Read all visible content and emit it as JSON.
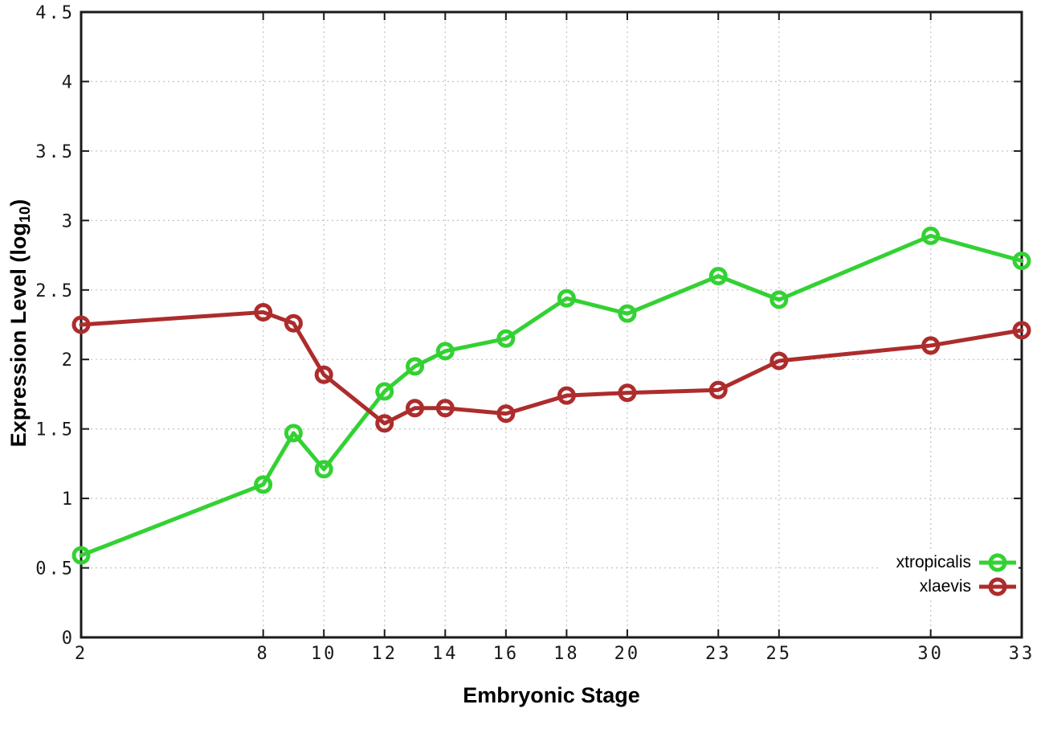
{
  "chart_data": {
    "type": "line",
    "title": "",
    "xlabel": "Embryonic Stage",
    "ylabel": "Expression Level (log10)",
    "ylabel_parts": {
      "main": "Expression Level (log",
      "sub": "10",
      "end": ")"
    },
    "x": [
      2,
      8,
      9,
      10,
      12,
      13,
      14,
      16,
      18,
      20,
      23,
      25,
      30,
      33
    ],
    "series": [
      {
        "name": "xtropicalis",
        "color": "#33d133",
        "values": [
          0.59,
          1.1,
          1.47,
          1.21,
          1.77,
          1.95,
          2.06,
          2.15,
          2.44,
          2.33,
          2.6,
          2.43,
          2.89,
          2.71
        ]
      },
      {
        "name": "xlaevis",
        "color": "#ad2c2c",
        "values": [
          2.25,
          2.34,
          2.26,
          1.89,
          1.54,
          1.65,
          1.65,
          1.61,
          1.74,
          1.76,
          1.78,
          1.99,
          2.1,
          2.21
        ]
      }
    ],
    "x_ticks": [
      2,
      8,
      10,
      12,
      14,
      16,
      18,
      20,
      23,
      25,
      30,
      33
    ],
    "y_ticks": [
      0,
      0.5,
      1,
      1.5,
      2,
      2.5,
      3,
      3.5,
      4,
      4.5
    ],
    "xlim": [
      2,
      33
    ],
    "ylim": [
      0,
      4.5
    ],
    "grid": true,
    "legend_position": "right-lower-inside",
    "marker": "open-circle"
  },
  "styles": {
    "background": "#ffffff",
    "axis_color": "#1a1a1a",
    "grid_color": "#c6c6c6",
    "tick_label_color": "#1a1a1a",
    "title_color": "#000000"
  }
}
